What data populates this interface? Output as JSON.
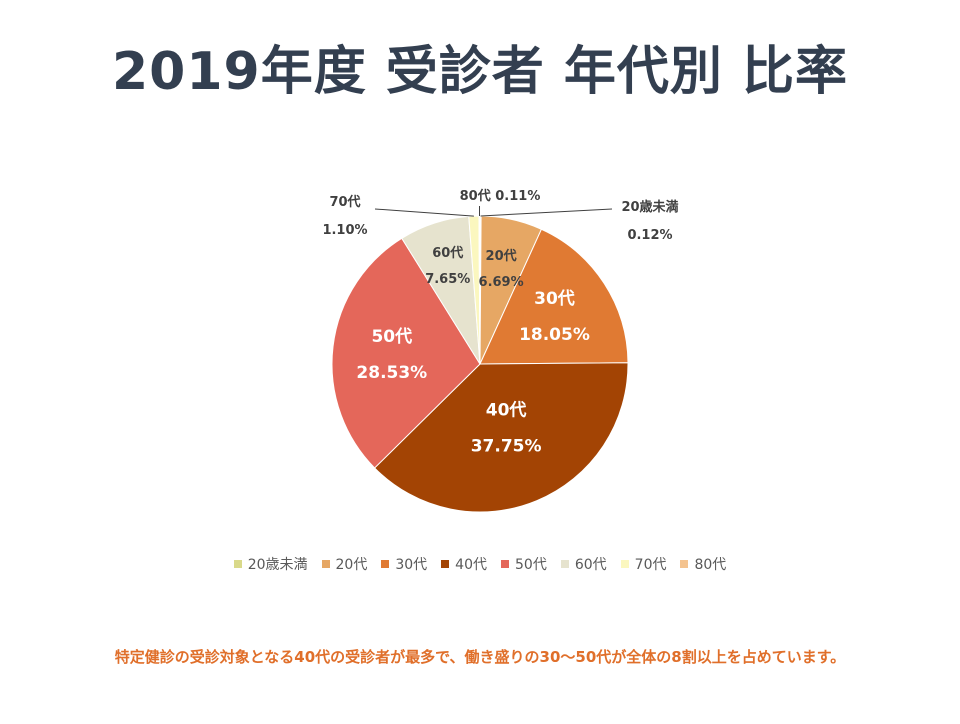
{
  "title": "2019年度 受診者 年代別 比率",
  "note": "特定健診の受診対象となる40代の受診者が最多で、働き盛りの30～50代が全体の8割以上を占めています。",
  "chart_data": {
    "type": "pie",
    "title": "2019年度 受診者 年代別 比率",
    "legend_position": "bottom",
    "start_angle_deg": 0,
    "direction": "clockwise",
    "slices": [
      {
        "name": "20歳未満",
        "value": 0.12,
        "label_name": "20歳未満",
        "label_value": "0.12%",
        "color": "#d9d98a",
        "label_color": "#404040",
        "label_inside": false
      },
      {
        "name": "20代",
        "value": 6.69,
        "label_name": "20代",
        "label_value": "6.69%",
        "color": "#e6a764",
        "label_color": "#404040",
        "label_inside": true
      },
      {
        "name": "30代",
        "value": 18.05,
        "label_name": "30代",
        "label_value": "18.05%",
        "color": "#e07a33",
        "label_color": "#ffffff",
        "label_inside": true
      },
      {
        "name": "40代",
        "value": 37.75,
        "label_name": "40代",
        "label_value": "37.75%",
        "color": "#a34404",
        "label_color": "#ffffff",
        "label_inside": true
      },
      {
        "name": "50代",
        "value": 28.53,
        "label_name": "50代",
        "label_value": "28.53%",
        "color": "#e4675a",
        "label_color": "#ffffff",
        "label_inside": true
      },
      {
        "name": "60代",
        "value": 7.65,
        "label_name": "60代",
        "label_value": "7.65%",
        "color": "#e6e3ce",
        "label_color": "#404040",
        "label_inside": true
      },
      {
        "name": "70代",
        "value": 1.1,
        "label_name": "70代",
        "label_value": "1.10%",
        "color": "#fbf7bf",
        "label_color": "#404040",
        "label_inside": false
      },
      {
        "name": "80代",
        "value": 0.11,
        "label_name": "80代",
        "label_value": "80代 0.11%",
        "color": "#f4c38f",
        "label_color": "#404040",
        "label_inside": false
      }
    ]
  }
}
